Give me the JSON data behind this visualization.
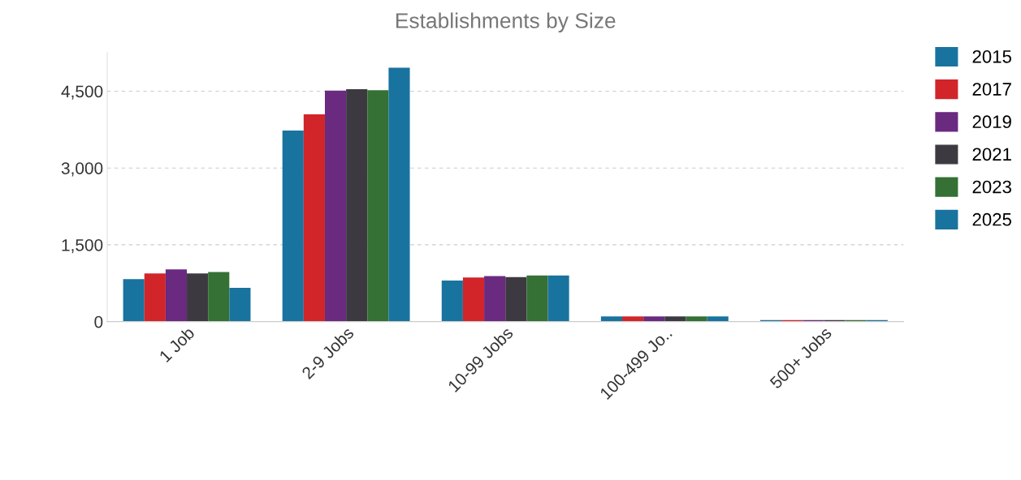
{
  "chart_data": {
    "type": "bar",
    "title": "Establishments by Size",
    "categories": [
      "1 Job",
      "2-9 Jobs",
      "10-99 Jobs",
      "100-499 Jo..",
      "500+ Jobs"
    ],
    "series": [
      {
        "name": "2015",
        "color": "#19739f",
        "values": [
          830,
          3730,
          800,
          100,
          30
        ]
      },
      {
        "name": "2017",
        "color": "#d1252a",
        "values": [
          940,
          4050,
          860,
          100,
          30
        ]
      },
      {
        "name": "2019",
        "color": "#6a2a80",
        "values": [
          1020,
          4510,
          890,
          100,
          30
        ]
      },
      {
        "name": "2021",
        "color": "#3c3a40",
        "values": [
          940,
          4540,
          870,
          100,
          30
        ]
      },
      {
        "name": "2023",
        "color": "#357035",
        "values": [
          970,
          4520,
          900,
          100,
          30
        ]
      },
      {
        "name": "2025",
        "color": "#19739f",
        "values": [
          660,
          4960,
          900,
          100,
          30
        ]
      }
    ],
    "ylim": [
      0,
      5250
    ],
    "yticks": [
      0,
      {
        "value": 1500,
        "label": "1,500"
      },
      {
        "value": 3000,
        "label": "3,000"
      },
      {
        "value": 4500,
        "label": "4,500"
      }
    ],
    "grid": "y",
    "legend": "right"
  }
}
